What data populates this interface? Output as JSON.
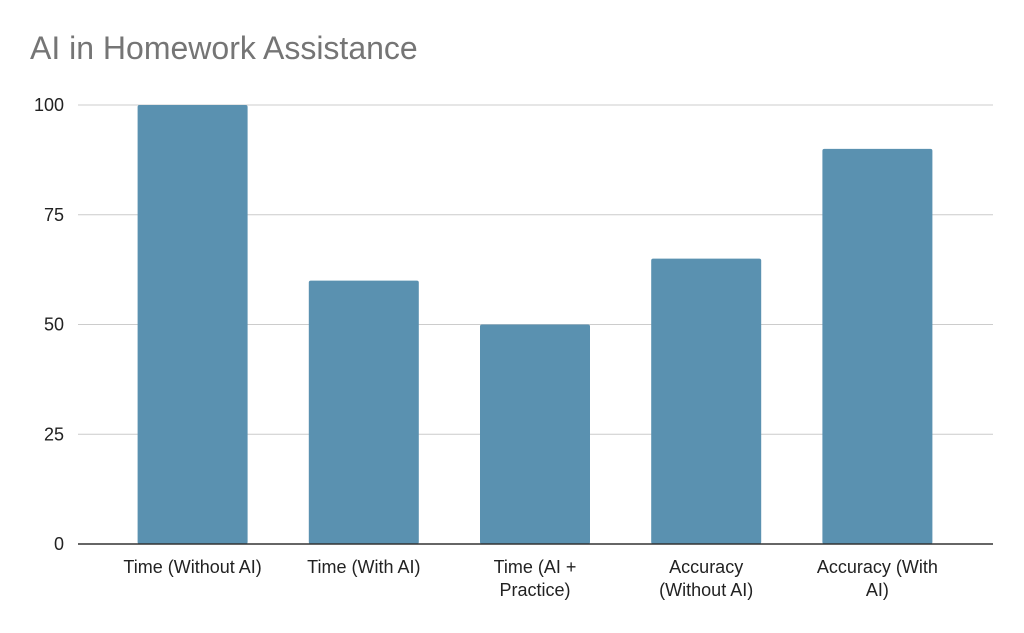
{
  "chart_data": {
    "type": "bar",
    "title": "AI in Homework Assistance",
    "categories": [
      [
        "Time (Without AI)"
      ],
      [
        "Time (With AI)"
      ],
      [
        "Time (AI +",
        "Practice)"
      ],
      [
        "Accuracy",
        "(Without AI)"
      ],
      [
        "Accuracy (With",
        "AI)"
      ]
    ],
    "values": [
      100,
      60,
      50,
      65,
      90
    ],
    "ylim": [
      0,
      100
    ],
    "yticks": [
      0,
      25,
      50,
      75,
      100
    ],
    "xlabel": "",
    "ylabel": "",
    "grid": true,
    "legend": "none",
    "colors": {
      "bar": "#5a91b0",
      "grid": "#cccccc",
      "axis": "#333333",
      "title": "#757575"
    }
  }
}
